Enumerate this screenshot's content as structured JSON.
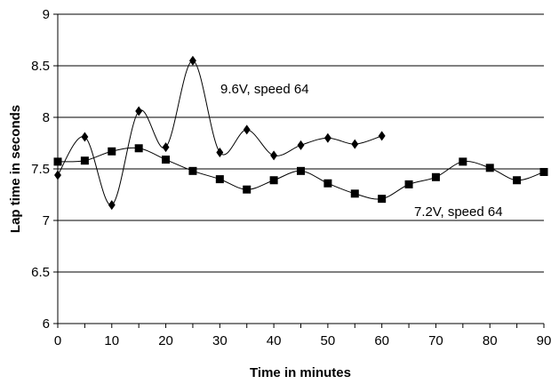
{
  "chart_data": {
    "type": "line",
    "xlabel": "Time in minutes",
    "ylabel": "Lap time in seconds",
    "xlim": [
      0,
      90
    ],
    "ylim": [
      6,
      9
    ],
    "xticks": [
      0,
      10,
      20,
      30,
      40,
      50,
      60,
      70,
      80,
      90
    ],
    "yticks": [
      6,
      6.5,
      7,
      7.5,
      8,
      8.5,
      9
    ],
    "grid": "horizontal",
    "smooth": true,
    "series": [
      {
        "name": "9.6V, speed 64",
        "marker": "diamond",
        "color": "#000000",
        "x": [
          0,
          5,
          10,
          15,
          20,
          25,
          30,
          35,
          40,
          45,
          50,
          55,
          60
        ],
        "y": [
          7.44,
          7.81,
          7.15,
          8.06,
          7.71,
          8.55,
          7.66,
          7.88,
          7.63,
          7.73,
          7.8,
          7.74,
          7.82
        ]
      },
      {
        "name": "7.2V, speed 64",
        "marker": "square",
        "color": "#000000",
        "x": [
          0,
          5,
          10,
          15,
          20,
          25,
          30,
          35,
          40,
          45,
          50,
          55,
          60,
          65,
          70,
          75,
          80,
          85,
          90
        ],
        "y": [
          7.57,
          7.58,
          7.67,
          7.7,
          7.59,
          7.48,
          7.4,
          7.3,
          7.39,
          7.48,
          7.36,
          7.26,
          7.21,
          7.35,
          7.42,
          7.57,
          7.51,
          7.39,
          7.47
        ]
      }
    ],
    "annotations": [
      {
        "text": "9.6V, speed 64",
        "series": 0
      },
      {
        "text": "7.2V, speed 64",
        "series": 1
      }
    ]
  }
}
